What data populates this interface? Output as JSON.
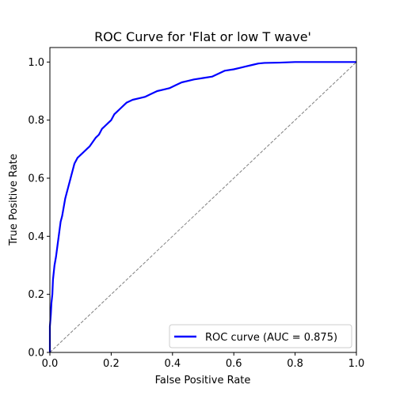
{
  "chart_data": {
    "type": "line",
    "title": "ROC Curve for 'Flat or low T wave'",
    "xlabel": "False Positive Rate",
    "ylabel": "True Positive Rate",
    "xlim": [
      0.0,
      1.0
    ],
    "ylim": [
      0.0,
      1.05
    ],
    "xticks": [
      "0.0",
      "0.2",
      "0.4",
      "0.6",
      "0.8",
      "1.0"
    ],
    "yticks": [
      "0.0",
      "0.2",
      "0.4",
      "0.6",
      "0.8",
      "1.0"
    ],
    "grid": false,
    "legend_position": "lower-right",
    "series": [
      {
        "name": "ROC curve (AUC = 0.875)",
        "color": "#0000ff",
        "x": [
          0.0,
          0.0,
          0.003,
          0.005,
          0.008,
          0.01,
          0.015,
          0.02,
          0.025,
          0.03,
          0.035,
          0.04,
          0.045,
          0.05,
          0.055,
          0.06,
          0.065,
          0.07,
          0.075,
          0.08,
          0.085,
          0.09,
          0.095,
          0.1,
          0.11,
          0.12,
          0.13,
          0.14,
          0.15,
          0.16,
          0.17,
          0.18,
          0.19,
          0.2,
          0.21,
          0.22,
          0.23,
          0.24,
          0.25,
          0.27,
          0.29,
          0.31,
          0.33,
          0.35,
          0.37,
          0.39,
          0.41,
          0.43,
          0.45,
          0.47,
          0.5,
          0.53,
          0.55,
          0.57,
          0.6,
          0.62,
          0.64,
          0.66,
          0.68,
          0.7,
          0.75,
          0.8,
          0.85,
          0.9,
          0.95,
          1.0
        ],
        "y": [
          0.0,
          0.09,
          0.13,
          0.17,
          0.2,
          0.25,
          0.3,
          0.33,
          0.37,
          0.41,
          0.45,
          0.47,
          0.5,
          0.53,
          0.55,
          0.57,
          0.59,
          0.61,
          0.63,
          0.65,
          0.66,
          0.67,
          0.675,
          0.68,
          0.69,
          0.7,
          0.71,
          0.725,
          0.74,
          0.75,
          0.77,
          0.78,
          0.79,
          0.8,
          0.82,
          0.83,
          0.84,
          0.85,
          0.86,
          0.87,
          0.875,
          0.88,
          0.89,
          0.9,
          0.905,
          0.91,
          0.92,
          0.93,
          0.935,
          0.94,
          0.945,
          0.95,
          0.96,
          0.97,
          0.975,
          0.98,
          0.985,
          0.99,
          0.995,
          0.997,
          0.998,
          1.0,
          1.0,
          1.0,
          1.0,
          1.0
        ]
      },
      {
        "name": "",
        "color": "#808080",
        "style": "dashed",
        "x": [
          0.0,
          1.0
        ],
        "y": [
          0.0,
          1.0
        ]
      }
    ]
  }
}
